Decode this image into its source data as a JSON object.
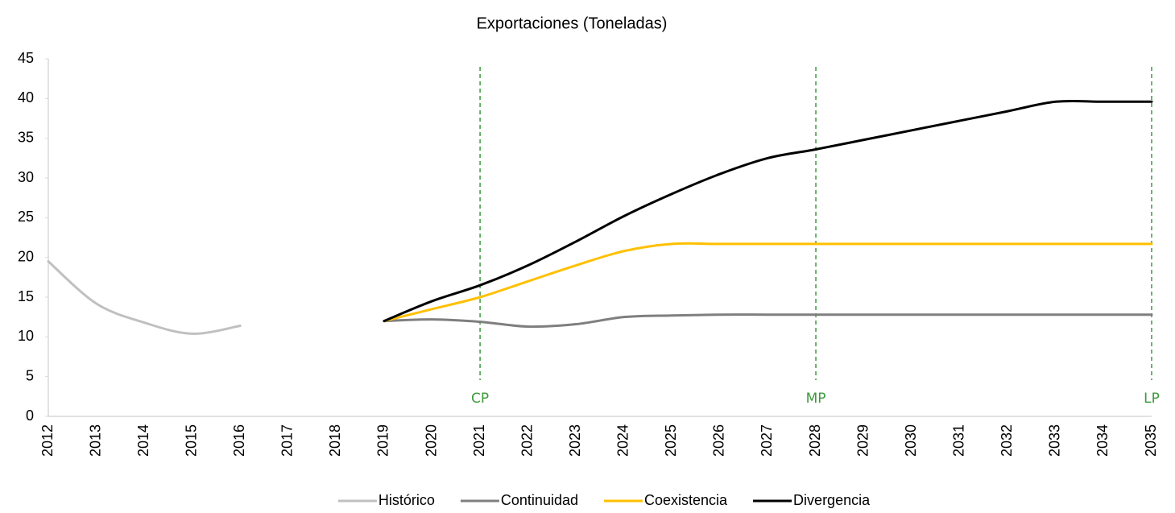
{
  "chart_data": {
    "type": "line",
    "title": "Exportaciones (Toneladas)",
    "categories": [
      "2012",
      "2013",
      "2014",
      "2015",
      "2016",
      "2017",
      "2018",
      "2019",
      "2020",
      "2021",
      "2022",
      "2023",
      "2024",
      "2025",
      "2026",
      "2027",
      "2028",
      "2029",
      "2030",
      "2031",
      "2032",
      "2033",
      "2034",
      "2035"
    ],
    "series": [
      {
        "name": "Histórico",
        "color": "#c0c0c0",
        "values": [
          19.5,
          14.2,
          11.8,
          10.4,
          11.4,
          null,
          null,
          null,
          null,
          null,
          null,
          null,
          null,
          null,
          null,
          null,
          null,
          null,
          null,
          null,
          null,
          null,
          null,
          null
        ]
      },
      {
        "name": "Continuidad",
        "color": "#7f7f7f",
        "values": [
          null,
          null,
          null,
          null,
          null,
          null,
          null,
          12.0,
          12.2,
          11.9,
          11.3,
          11.6,
          12.5,
          12.7,
          12.8,
          12.8,
          12.8,
          12.8,
          12.8,
          12.8,
          12.8,
          12.8,
          12.8,
          12.8
        ]
      },
      {
        "name": "Coexistencia",
        "color": "#ffc000",
        "values": [
          null,
          null,
          null,
          null,
          null,
          null,
          null,
          12.0,
          13.5,
          15.0,
          17.0,
          19.0,
          20.8,
          21.7,
          21.7,
          21.7,
          21.7,
          21.7,
          21.7,
          21.7,
          21.7,
          21.7,
          21.7,
          21.7
        ]
      },
      {
        "name": "Divergencia",
        "color": "#000000",
        "values": [
          null,
          null,
          null,
          null,
          null,
          null,
          null,
          12.0,
          14.5,
          16.5,
          19.0,
          22.0,
          25.2,
          28.0,
          30.5,
          32.5,
          33.6,
          34.8,
          36.0,
          37.2,
          38.4,
          39.6,
          39.6,
          39.6
        ]
      }
    ],
    "annotations": [
      {
        "text": "CP",
        "category": "2021"
      },
      {
        "text": "MP",
        "category": "2028"
      },
      {
        "text": "LP",
        "category": "2035"
      }
    ],
    "annotation_color": "#3c9a3c",
    "ylim": [
      0,
      45
    ],
    "yticks": [
      0,
      5,
      10,
      15,
      20,
      25,
      30,
      35,
      40,
      45
    ],
    "grid": false,
    "legend": "bottom"
  }
}
